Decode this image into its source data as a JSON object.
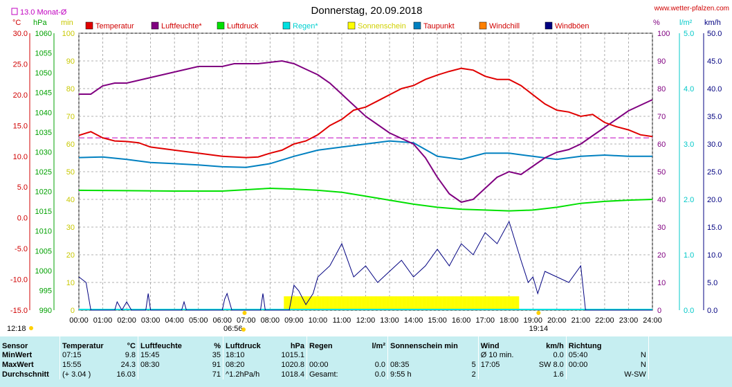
{
  "header": {
    "title": "Donnerstag, 20.09.2018",
    "site": "www.wetter-pfalzen.com",
    "monthly_avg": "13.0 Monat-Ø"
  },
  "axes": {
    "left_units": [
      "°C",
      "hPa",
      "min"
    ],
    "right_units": [
      "%",
      "l/m²",
      "km/h"
    ],
    "temp_ticks": [
      "30.0",
      "25.0",
      "20.0",
      "15.0",
      "10.0",
      "5.0",
      "0.0",
      "-5.0",
      "-10.0",
      "-15.0"
    ],
    "press_ticks": [
      "1060",
      "1055",
      "1050",
      "1045",
      "1040",
      "1035",
      "1030",
      "1025",
      "1020",
      "1015",
      "1010",
      "1005",
      "1000",
      "995",
      "990"
    ],
    "min_ticks": [
      "100",
      "90",
      "80",
      "70",
      "60",
      "50",
      "40",
      "30",
      "20",
      "10",
      "0"
    ],
    "pct_ticks": [
      "100",
      "90",
      "80",
      "70",
      "60",
      "50",
      "40",
      "30",
      "20",
      "10",
      "0"
    ],
    "rain_ticks": [
      "5.0",
      "4.0",
      "3.0",
      "2.0",
      "1.0",
      "0.0"
    ],
    "wind_ticks": [
      "50.0",
      "45.0",
      "40.0",
      "35.0",
      "30.0",
      "25.0",
      "20.0",
      "15.0",
      "10.0",
      "5.0",
      "0.0"
    ],
    "time_ticks": [
      "00:00",
      "01:00",
      "02:00",
      "03:00",
      "04:00",
      "05:00",
      "06:00",
      "07:00",
      "08:00",
      "09:00",
      "10:00",
      "11:00",
      "12:00",
      "13:00",
      "14:00",
      "15:00",
      "16:00",
      "17:00",
      "18:00",
      "19:00",
      "20:00",
      "21:00",
      "22:00",
      "23:00",
      "24:00"
    ],
    "sunrise": "06:56",
    "sunset": "19:14",
    "moon_time": "12:18"
  },
  "legend": [
    {
      "label": "Temperatur",
      "color": "#e00000"
    },
    {
      "label": "Luftfeuchte*",
      "color": "#800080"
    },
    {
      "label": "Luftdruck",
      "color": "#00e000"
    },
    {
      "label": "Regen*",
      "color": "#00e0e0"
    },
    {
      "label": "Sonnenschein",
      "color": "#ffff00"
    },
    {
      "label": "Taupunkt",
      "color": "#0080c0"
    },
    {
      "label": "Windchill",
      "color": "#ff8000"
    },
    {
      "label": "Windböen",
      "color": "#000080"
    }
  ],
  "chart_data": {
    "type": "line",
    "x_unit": "hour",
    "x_range": [
      0,
      24
    ],
    "reference_line": {
      "label": "13.0 Monat-Ø",
      "value": 13.0,
      "axis": "temperature"
    },
    "series": [
      {
        "name": "Temperatur",
        "axis": "°C",
        "ylim": [
          -15,
          30
        ],
        "points": [
          [
            0,
            13.4
          ],
          [
            0.5,
            14
          ],
          [
            1,
            13
          ],
          [
            1.5,
            12.5
          ],
          [
            2,
            12.4
          ],
          [
            2.5,
            12.2
          ],
          [
            3,
            11.5
          ],
          [
            4,
            11
          ],
          [
            5,
            10.5
          ],
          [
            6,
            10
          ],
          [
            7,
            9.8
          ],
          [
            7.5,
            9.9
          ],
          [
            8,
            10.5
          ],
          [
            8.5,
            11
          ],
          [
            9,
            12
          ],
          [
            9.5,
            12.5
          ],
          [
            10,
            13.5
          ],
          [
            10.5,
            15
          ],
          [
            11,
            16
          ],
          [
            11.5,
            17.5
          ],
          [
            12,
            18
          ],
          [
            12.5,
            19
          ],
          [
            13,
            20
          ],
          [
            13.5,
            21
          ],
          [
            14,
            21.5
          ],
          [
            14.5,
            22.5
          ],
          [
            15,
            23.2
          ],
          [
            15.5,
            23.8
          ],
          [
            16,
            24.3
          ],
          [
            16.5,
            24
          ],
          [
            17,
            23
          ],
          [
            17.5,
            22.5
          ],
          [
            18,
            22.5
          ],
          [
            18.5,
            21.5
          ],
          [
            19,
            20
          ],
          [
            19.5,
            18.5
          ],
          [
            20,
            17.5
          ],
          [
            20.5,
            17.2
          ],
          [
            21,
            16.5
          ],
          [
            21.5,
            16.8
          ],
          [
            22,
            15.5
          ],
          [
            22.5,
            14.8
          ],
          [
            23,
            14.3
          ],
          [
            23.5,
            13.5
          ],
          [
            24,
            13.2
          ]
        ]
      },
      {
        "name": "Luftfeuchte*",
        "axis": "%",
        "ylim": [
          0,
          100
        ],
        "points": [
          [
            0,
            78
          ],
          [
            0.5,
            78
          ],
          [
            1,
            81
          ],
          [
            1.5,
            82
          ],
          [
            2,
            82
          ],
          [
            2.5,
            83
          ],
          [
            3,
            84
          ],
          [
            3.5,
            85
          ],
          [
            4,
            86
          ],
          [
            5,
            88
          ],
          [
            6,
            88
          ],
          [
            6.5,
            89
          ],
          [
            7,
            89
          ],
          [
            7.5,
            89
          ],
          [
            8,
            89.5
          ],
          [
            8.5,
            90
          ],
          [
            9,
            89
          ],
          [
            9.5,
            87
          ],
          [
            10,
            85
          ],
          [
            10.5,
            82
          ],
          [
            11,
            78
          ],
          [
            11.5,
            74
          ],
          [
            12,
            70
          ],
          [
            12.5,
            67
          ],
          [
            13,
            64
          ],
          [
            13.5,
            62
          ],
          [
            14,
            60
          ],
          [
            14.5,
            55
          ],
          [
            15,
            48
          ],
          [
            15.5,
            42
          ],
          [
            16,
            39
          ],
          [
            16.5,
            40
          ],
          [
            17,
            44
          ],
          [
            17.5,
            48
          ],
          [
            18,
            50
          ],
          [
            18.5,
            49
          ],
          [
            19,
            52
          ],
          [
            19.5,
            55
          ],
          [
            20,
            57
          ],
          [
            20.5,
            58
          ],
          [
            21,
            60
          ],
          [
            21.5,
            63
          ],
          [
            22,
            66
          ],
          [
            22.5,
            69
          ],
          [
            23,
            72
          ],
          [
            23.5,
            74
          ],
          [
            24,
            76
          ]
        ]
      },
      {
        "name": "Luftdruck",
        "axis": "hPa",
        "ylim": [
          990,
          1060
        ],
        "points": [
          [
            0,
            1020.3
          ],
          [
            2,
            1020.2
          ],
          [
            4,
            1020.1
          ],
          [
            6,
            1020.1
          ],
          [
            8,
            1020.8
          ],
          [
            9,
            1020.6
          ],
          [
            10,
            1020.3
          ],
          [
            11,
            1019.8
          ],
          [
            12,
            1018.8
          ],
          [
            13,
            1017.8
          ],
          [
            14,
            1016.8
          ],
          [
            15,
            1016.0
          ],
          [
            16,
            1015.5
          ],
          [
            17,
            1015.3
          ],
          [
            18,
            1015.1
          ],
          [
            19,
            1015.3
          ],
          [
            20,
            1016.0
          ],
          [
            21,
            1017
          ],
          [
            22,
            1017.5
          ],
          [
            23,
            1017.8
          ],
          [
            24,
            1018
          ]
        ]
      },
      {
        "name": "Taupunkt",
        "axis": "°C",
        "ylim": [
          -15,
          30
        ],
        "points": [
          [
            0,
            9.8
          ],
          [
            1,
            9.9
          ],
          [
            2,
            9.5
          ],
          [
            3,
            9.0
          ],
          [
            4,
            8.8
          ],
          [
            5,
            8.6
          ],
          [
            6,
            8.3
          ],
          [
            7,
            8.2
          ],
          [
            8,
            8.8
          ],
          [
            9,
            10
          ],
          [
            10,
            11
          ],
          [
            11,
            11.5
          ],
          [
            12,
            12
          ],
          [
            13,
            12.5
          ],
          [
            14,
            12.2
          ],
          [
            15,
            10
          ],
          [
            16,
            9.5
          ],
          [
            17,
            10.5
          ],
          [
            18,
            10.5
          ],
          [
            19,
            10
          ],
          [
            20,
            9.5
          ],
          [
            21,
            10
          ],
          [
            22,
            10.2
          ],
          [
            23,
            10
          ],
          [
            24,
            10
          ]
        ]
      },
      {
        "name": "Windböen",
        "axis": "km/h",
        "ylim": [
          0,
          50
        ],
        "points": [
          [
            0,
            6
          ],
          [
            0.3,
            5
          ],
          [
            0.5,
            0
          ],
          [
            1,
            0
          ],
          [
            1.5,
            0
          ],
          [
            1.6,
            1.5
          ],
          [
            1.8,
            0
          ],
          [
            2,
            1.5
          ],
          [
            2.2,
            0
          ],
          [
            2.8,
            0
          ],
          [
            2.9,
            3
          ],
          [
            3,
            0
          ],
          [
            4.3,
            0
          ],
          [
            4.4,
            1.5
          ],
          [
            4.5,
            0
          ],
          [
            6,
            0
          ],
          [
            6.1,
            2
          ],
          [
            6.2,
            3
          ],
          [
            6.4,
            0
          ],
          [
            7.6,
            0
          ],
          [
            7.7,
            3
          ],
          [
            7.8,
            0
          ],
          [
            8.8,
            0
          ],
          [
            9,
            4.5
          ],
          [
            9.2,
            3.5
          ],
          [
            9.5,
            1
          ],
          [
            9.8,
            3
          ],
          [
            10,
            6
          ],
          [
            10.5,
            8
          ],
          [
            11,
            12
          ],
          [
            11.5,
            6
          ],
          [
            12,
            8
          ],
          [
            12.5,
            5
          ],
          [
            13,
            7
          ],
          [
            13.5,
            9
          ],
          [
            14,
            6
          ],
          [
            14.5,
            8
          ],
          [
            15,
            11
          ],
          [
            15.5,
            8
          ],
          [
            16,
            12
          ],
          [
            16.5,
            10
          ],
          [
            17,
            14
          ],
          [
            17.5,
            12
          ],
          [
            18,
            16
          ],
          [
            18.5,
            9
          ],
          [
            18.8,
            5
          ],
          [
            19,
            6
          ],
          [
            19.2,
            3
          ],
          [
            19.5,
            7
          ],
          [
            20,
            6
          ],
          [
            20.5,
            5
          ],
          [
            21,
            8
          ],
          [
            21.2,
            0
          ],
          [
            24,
            0
          ]
        ]
      },
      {
        "name": "Sonnenschein",
        "axis": "min",
        "ylim": [
          0,
          100
        ],
        "segments": [
          [
            8.6,
            18.4
          ]
        ],
        "value": 5
      }
    ]
  },
  "stats": {
    "headers": [
      {
        "label": "Sensor",
        "unit": ""
      },
      {
        "label": "Temperatur",
        "unit": "°C"
      },
      {
        "label": "Luftfeuchte",
        "unit": "%"
      },
      {
        "label": "Luftdruck",
        "unit": "hPa"
      },
      {
        "label": "Regen",
        "unit": "l/m²"
      },
      {
        "label": "Sonnenschein min",
        "unit": ""
      },
      {
        "label": "Wind",
        "unit": "km/h"
      },
      {
        "label": "Richtung",
        "unit": ""
      }
    ],
    "rows": [
      {
        "label": "MinWert",
        "cells": [
          [
            "07:15",
            "9.8"
          ],
          [
            "15:45",
            "35"
          ],
          [
            "18:10",
            "1015.1"
          ],
          [
            "",
            ""
          ],
          [
            "",
            ""
          ],
          [
            "Ø 10 min.",
            "0.0"
          ],
          [
            "05:40",
            "N"
          ]
        ]
      },
      {
        "label": "MaxWert",
        "cells": [
          [
            "15:55",
            "24.3"
          ],
          [
            "08:30",
            "91"
          ],
          [
            "08:20",
            "1020.8"
          ],
          [
            "00:00",
            "0.0"
          ],
          [
            "08:35",
            "5"
          ],
          [
            "17:05",
            "SW 8.0"
          ],
          [
            "00:00",
            "N"
          ]
        ]
      },
      {
        "label": "Durchschnitt",
        "cells": [
          [
            "(+ 3.04 )",
            "16.03"
          ],
          [
            "",
            "71"
          ],
          [
            "^1.2hPa/h",
            "1018.4"
          ],
          [
            "Gesamt:",
            "0.0"
          ],
          [
            "9:55 h",
            "2"
          ],
          [
            "",
            "1.6"
          ],
          [
            "",
            "W-SW"
          ]
        ]
      }
    ]
  }
}
